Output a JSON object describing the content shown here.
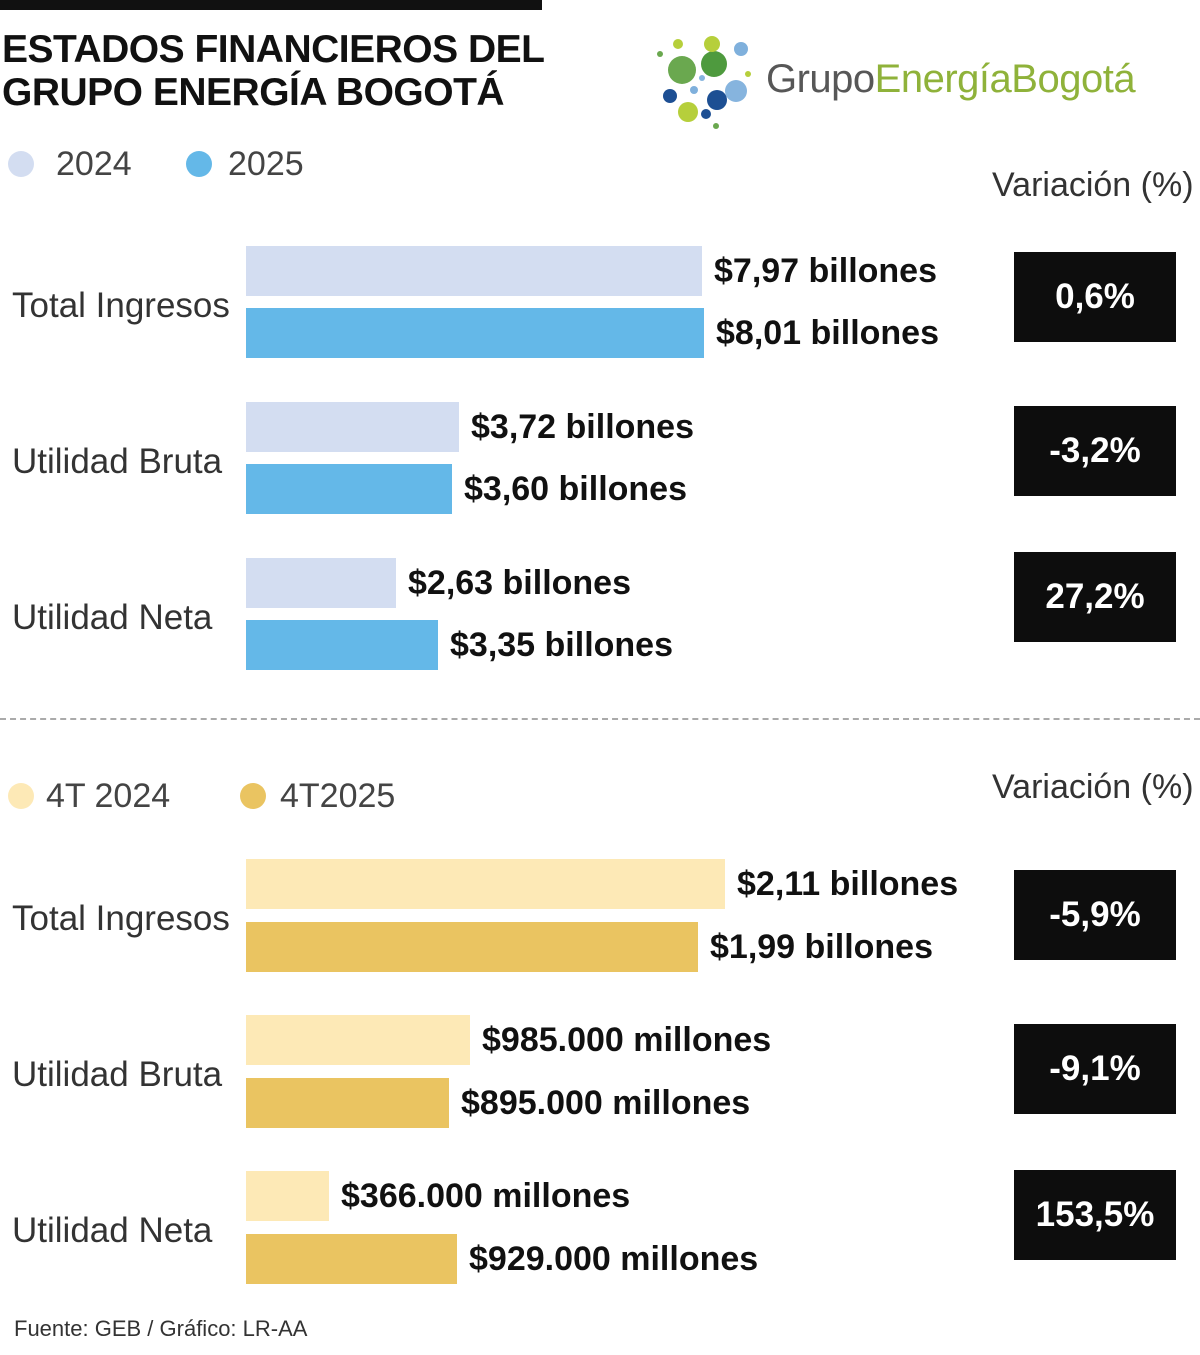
{
  "title": {
    "line1": "ESTADOS FINANCIEROS DEL",
    "line2": "GRUPO ENERGÍA BOGOTÁ"
  },
  "logo": {
    "part1": "Grupo",
    "part2": "Energía",
    "part3": "Bogotá"
  },
  "source": "Fuente: GEB / Gráfico: LR-AA",
  "colors": {
    "light_blue": "#d3ddf1",
    "blue": "#64b8e8",
    "light_yellow": "#fde9b6",
    "yellow": "#eac461",
    "box": "#0d0d0d"
  },
  "chart_data": [
    {
      "type": "bar",
      "orientation": "horizontal",
      "categories": [
        "Total Ingresos",
        "Utilidad Bruta",
        "Utilidad Neta"
      ],
      "series": [
        {
          "name": "2024",
          "color": "#d3ddf1",
          "values": [
            7.97,
            3.72,
            2.63
          ],
          "labels": [
            "$7,97 billones",
            "$3,72 billones",
            "$2,63 billones"
          ]
        },
        {
          "name": "2025",
          "color": "#64b8e8",
          "values": [
            8.01,
            3.6,
            3.35
          ],
          "labels": [
            "$8,01 billones",
            "$3,60 billones",
            "$3,35 billones"
          ]
        }
      ],
      "variation_header": "Variación (%)",
      "variations": [
        "0,6%",
        "-3,2%",
        "27,2%"
      ]
    },
    {
      "type": "bar",
      "orientation": "horizontal",
      "categories": [
        "Total Ingresos",
        "Utilidad Bruta",
        "Utilidad Neta"
      ],
      "series": [
        {
          "name": "4T 2024",
          "color": "#fde9b6",
          "values": [
            2.11,
            0.985,
            0.366
          ],
          "labels": [
            "$2,11 billones",
            "$985.000 millones",
            "$366.000 millones"
          ]
        },
        {
          "name": "4T2025",
          "color": "#eac461",
          "values": [
            1.99,
            0.895,
            0.929
          ],
          "labels": [
            "$1,99 billones",
            "$895.000 millones",
            "$929.000 millones"
          ]
        }
      ],
      "variation_header": "Variación (%)",
      "variations": [
        "-5,9%",
        "-9,1%",
        "153,5%"
      ]
    }
  ]
}
